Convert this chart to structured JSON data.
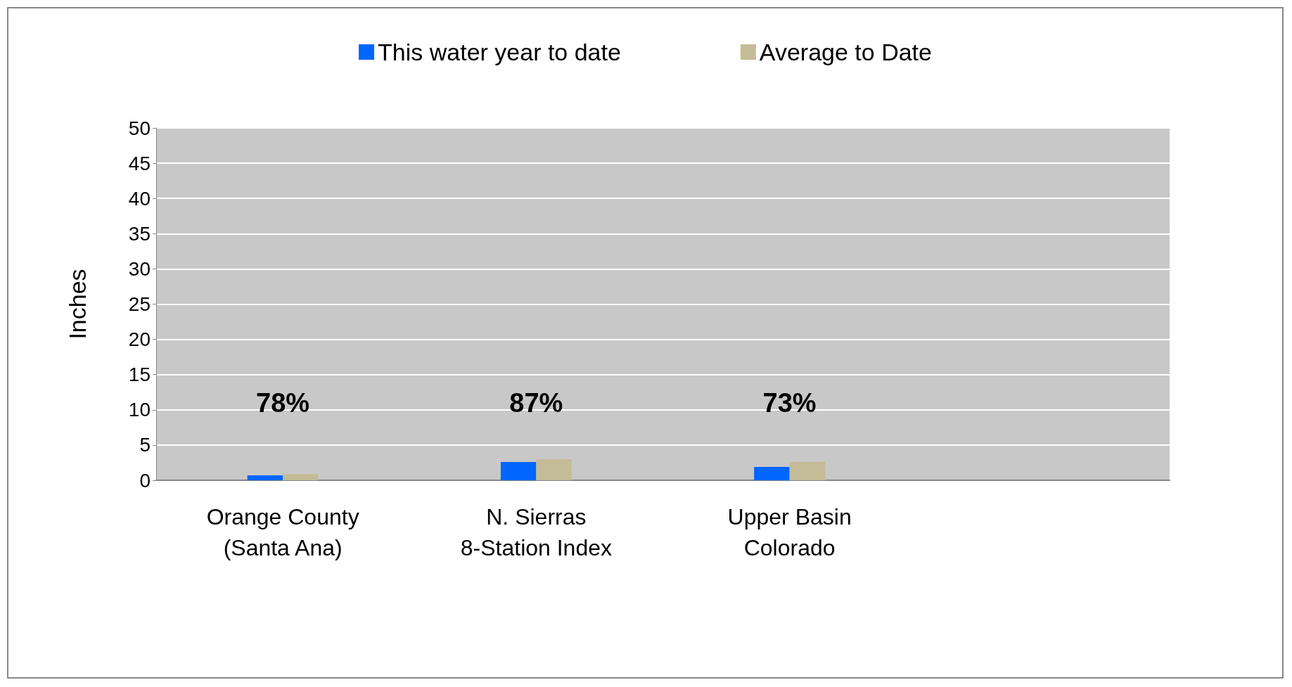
{
  "chart_data": {
    "type": "bar",
    "ylabel": "Inches",
    "categories": [
      "Orange County\n(Santa Ana)",
      "N. Sierras\n8-Station Index",
      "Upper Basin\nColorado",
      null
    ],
    "series": [
      {
        "name": "This water year to date",
        "color": "#0066ff",
        "values": [
          0.7,
          2.6,
          1.9,
          null
        ]
      },
      {
        "name": "Average to Date",
        "color": "#c4bc96",
        "values": [
          0.9,
          3.0,
          2.6,
          null
        ]
      }
    ],
    "ylim": [
      0,
      50
    ],
    "yticks": [
      0,
      5,
      10,
      15,
      20,
      25,
      30,
      35,
      40,
      45,
      50
    ],
    "annotations": [
      "78%",
      "87%",
      "73%"
    ],
    "grid": true,
    "legend": "top"
  }
}
